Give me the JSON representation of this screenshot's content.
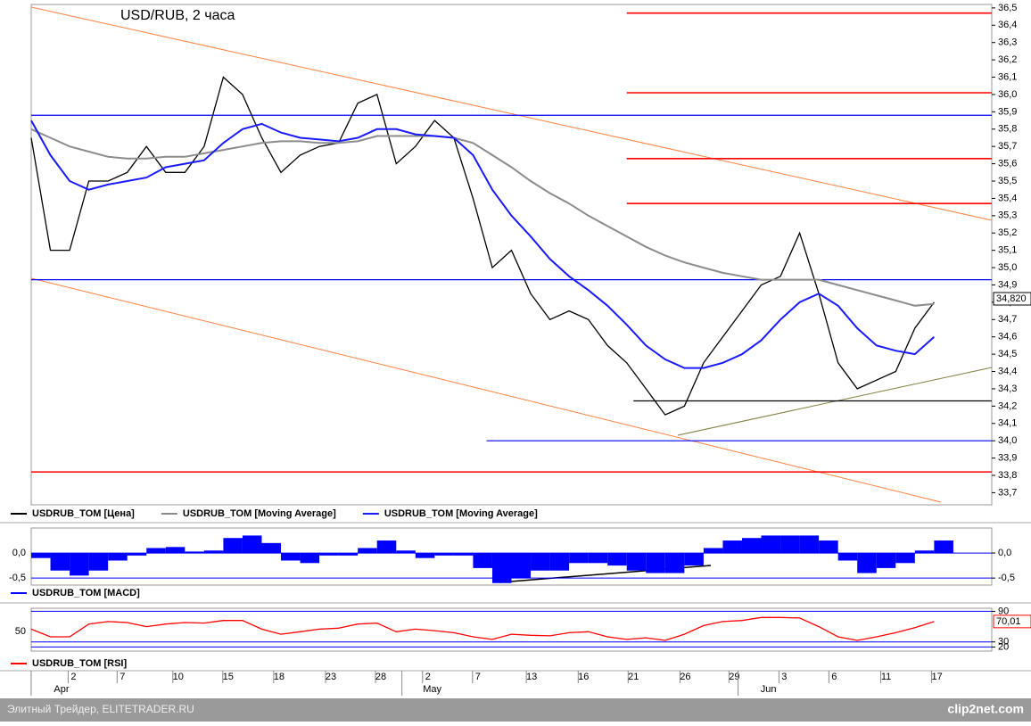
{
  "chart_data": [
    {
      "type": "line",
      "title": "USD/RUB, 2 часа",
      "xlim": [
        0,
        100
      ],
      "ylim": [
        33.63,
        36.52
      ],
      "x": [
        0,
        2,
        4,
        6,
        8,
        10,
        12,
        14,
        16,
        18,
        20,
        22,
        24,
        26,
        28,
        30,
        32,
        34,
        36,
        38,
        40,
        42,
        44,
        46,
        48,
        50,
        52,
        54,
        56,
        58,
        60,
        62,
        64,
        66,
        68,
        70,
        72,
        74,
        76,
        78,
        80,
        82,
        84,
        86,
        88,
        90,
        92,
        94
      ],
      "series": [
        {
          "name": "USDRUB_TOM [Цена]",
          "color": "#000000",
          "values": [
            35.75,
            35.1,
            35.1,
            35.5,
            35.5,
            35.55,
            35.7,
            35.55,
            35.55,
            35.7,
            36.1,
            36.0,
            35.75,
            35.55,
            35.65,
            35.7,
            35.72,
            35.95,
            36.0,
            35.6,
            35.7,
            35.85,
            35.75,
            35.4,
            35.0,
            35.1,
            34.85,
            34.7,
            34.75,
            34.7,
            34.55,
            34.45,
            34.3,
            34.15,
            34.2,
            34.45,
            34.6,
            34.75,
            34.9,
            34.95,
            35.2,
            34.85,
            34.45,
            34.3,
            34.35,
            34.4,
            34.65,
            34.8
          ]
        },
        {
          "name": "USDRUB_TOM [Moving Average]",
          "color": "#8c8c8c",
          "values": [
            35.8,
            35.75,
            35.7,
            35.67,
            35.64,
            35.63,
            35.63,
            35.64,
            35.64,
            35.66,
            35.68,
            35.7,
            35.72,
            35.73,
            35.73,
            35.72,
            35.72,
            35.73,
            35.76,
            35.76,
            35.76,
            35.76,
            35.75,
            35.72,
            35.65,
            35.58,
            35.5,
            35.43,
            35.37,
            35.3,
            35.24,
            35.18,
            35.12,
            35.07,
            35.03,
            35.0,
            34.97,
            34.95,
            34.93,
            34.93,
            34.93,
            34.93,
            34.9,
            34.87,
            34.84,
            34.81,
            34.78,
            34.79
          ]
        },
        {
          "name": "USDRUB_TOM [Moving Average]",
          "color": "#1a1aff",
          "values": [
            35.85,
            35.65,
            35.5,
            35.45,
            35.48,
            35.5,
            35.52,
            35.58,
            35.6,
            35.62,
            35.72,
            35.8,
            35.83,
            35.78,
            35.75,
            35.74,
            35.73,
            35.75,
            35.8,
            35.8,
            35.77,
            35.76,
            35.75,
            35.65,
            35.45,
            35.3,
            35.18,
            35.05,
            34.95,
            34.87,
            34.78,
            34.67,
            34.55,
            34.47,
            34.42,
            34.42,
            34.45,
            34.5,
            34.58,
            34.7,
            34.8,
            34.85,
            34.78,
            34.65,
            34.55,
            34.52,
            34.5,
            34.6
          ]
        }
      ],
      "levels": [
        {
          "value": 36.47,
          "color": "#ff0000",
          "from": 62
        },
        {
          "value": 36.01,
          "color": "#ff0000",
          "from": 62
        },
        {
          "value": 35.63,
          "color": "#ff0000",
          "from": 62
        },
        {
          "value": 35.37,
          "color": "#ff0000",
          "from": 62
        },
        {
          "value": 33.82,
          "color": "#ff0000",
          "from": 0
        },
        {
          "value": 35.88,
          "color": "#0000ff",
          "from": 0
        },
        {
          "value": 34.93,
          "color": "#0000ff",
          "from": 0
        },
        {
          "value": 34.0,
          "color": "#0000ff",
          "from": 47.4
        },
        {
          "value": 34.23,
          "color": "#000000",
          "from": 62.7
        }
      ],
      "last_value": {
        "value": 34.82,
        "label": "34,820"
      },
      "ytick_sides": "right",
      "grid": false,
      "yticks": [
        {
          "value": 33.7,
          "label": "33,7"
        },
        {
          "value": 33.8,
          "label": "33,8"
        },
        {
          "value": 33.9,
          "label": "33,9"
        },
        {
          "value": 34.0,
          "label": "34,0"
        },
        {
          "value": 34.1,
          "label": "34,1"
        },
        {
          "value": 34.2,
          "label": "34,2"
        },
        {
          "value": 34.3,
          "label": "34,3"
        },
        {
          "value": 34.4,
          "label": "34,4"
        },
        {
          "value": 34.5,
          "label": "34,5"
        },
        {
          "value": 34.6,
          "label": "34,6"
        },
        {
          "value": 34.7,
          "label": "34,7"
        },
        {
          "value": 34.8,
          "label": "34,8"
        },
        {
          "value": 34.9,
          "label": "34,9"
        },
        {
          "value": 35.0,
          "label": "35,0"
        },
        {
          "value": 35.1,
          "label": "35,1"
        },
        {
          "value": 35.2,
          "label": "35,2"
        },
        {
          "value": 35.3,
          "label": "35,3"
        },
        {
          "value": 35.4,
          "label": "35,4"
        },
        {
          "value": 35.5,
          "label": "35,5"
        },
        {
          "value": 35.6,
          "label": "35,6"
        },
        {
          "value": 35.7,
          "label": "35,7"
        },
        {
          "value": 35.8,
          "label": "35,8"
        },
        {
          "value": 35.9,
          "label": "35,9"
        },
        {
          "value": 36.0,
          "label": "36,0"
        },
        {
          "value": 36.1,
          "label": "36,1"
        },
        {
          "value": 36.2,
          "label": "36,2"
        },
        {
          "value": 36.3,
          "label": "36,3"
        },
        {
          "value": 36.4,
          "label": "36,4"
        },
        {
          "value": 36.5,
          "label": "36,5"
        }
      ]
    },
    {
      "type": "bar",
      "xlim": [
        0,
        100
      ],
      "ylim": [
        -0.64,
        0.5
      ],
      "x": [
        0,
        2,
        4,
        6,
        8,
        10,
        12,
        14,
        16,
        18,
        20,
        22,
        24,
        26,
        28,
        30,
        32,
        34,
        36,
        38,
        40,
        42,
        44,
        46,
        48,
        50,
        52,
        54,
        56,
        58,
        60,
        62,
        64,
        66,
        68,
        70,
        72,
        74,
        76,
        78,
        80,
        82,
        84,
        86,
        88,
        90,
        92,
        94
      ],
      "series": [
        {
          "name": "USDRUB_TOM [MACD]",
          "color": "#0000ff",
          "values": [
            -0.1,
            -0.35,
            -0.45,
            -0.35,
            -0.15,
            -0.05,
            0.1,
            0.12,
            0.03,
            0.05,
            0.3,
            0.35,
            0.2,
            -0.15,
            -0.2,
            -0.05,
            -0.05,
            0.1,
            0.25,
            0.05,
            -0.1,
            -0.05,
            -0.05,
            -0.3,
            -0.6,
            -0.5,
            -0.35,
            -0.35,
            -0.2,
            -0.2,
            -0.25,
            -0.35,
            -0.4,
            -0.4,
            -0.25,
            0.1,
            0.25,
            0.3,
            0.35,
            0.35,
            0.35,
            0.25,
            -0.15,
            -0.4,
            -0.3,
            -0.2,
            0.05,
            0.25
          ]
        }
      ],
      "ytick_sides": "both",
      "grid": true,
      "grid_color": "#0000ff",
      "yticks": [
        {
          "value": 0,
          "label": "0,0"
        },
        {
          "value": -0.5,
          "label": "-0,5"
        }
      ]
    },
    {
      "type": "line",
      "xlim": [
        0,
        100
      ],
      "ylim": [
        12,
        96
      ],
      "x": [
        0,
        2,
        4,
        6,
        8,
        10,
        12,
        14,
        16,
        18,
        20,
        22,
        24,
        26,
        28,
        30,
        32,
        34,
        36,
        38,
        40,
        42,
        44,
        46,
        48,
        50,
        52,
        54,
        56,
        58,
        60,
        62,
        64,
        66,
        68,
        70,
        72,
        74,
        76,
        78,
        80,
        82,
        84,
        86,
        88,
        90,
        92,
        94
      ],
      "series": [
        {
          "name": "USDRUB_TOM [RSI]",
          "color": "#ff0000",
          "values": [
            55,
            40,
            40,
            65,
            70,
            68,
            60,
            65,
            68,
            67,
            72,
            72,
            55,
            45,
            50,
            55,
            57,
            65,
            67,
            50,
            55,
            52,
            48,
            40,
            35,
            45,
            43,
            42,
            48,
            50,
            40,
            35,
            38,
            33,
            45,
            62,
            70,
            72,
            78,
            78,
            77,
            60,
            40,
            33,
            40,
            48,
            58,
            70
          ]
        }
      ],
      "last_value": {
        "value": 70.01,
        "label": "70,01"
      },
      "ytick_sides": "right",
      "grid": true,
      "grid_color": "#0000ff",
      "yticks": [
        90,
        30,
        20
      ],
      "left_yticks": [
        50
      ],
      "xticks": [
        {
          "value": 4.4,
          "label": "2"
        },
        {
          "value": 9.5,
          "label": "7"
        },
        {
          "value": 15.3,
          "label": "10"
        },
        {
          "value": 20.5,
          "label": "15"
        },
        {
          "value": 25.8,
          "label": "18"
        },
        {
          "value": 31.2,
          "label": "23"
        },
        {
          "value": 36.4,
          "label": "28"
        },
        {
          "value": 41.3,
          "label": "2"
        },
        {
          "value": 46.5,
          "label": "7"
        },
        {
          "value": 52.1,
          "label": "13"
        },
        {
          "value": 57.5,
          "label": "16"
        },
        {
          "value": 62.7,
          "label": "21"
        },
        {
          "value": 68.1,
          "label": "26"
        },
        {
          "value": 73.2,
          "label": "29"
        },
        {
          "value": 78.4,
          "label": "3"
        },
        {
          "value": 83.6,
          "label": "6"
        },
        {
          "value": 89.0,
          "label": "11"
        },
        {
          "value": 94.3,
          "label": "17"
        }
      ],
      "month_ticks": [
        {
          "value": 2.5,
          "label": "Apr"
        },
        {
          "value": 41.1,
          "label": "May"
        },
        {
          "value": 76.1,
          "label": "Jun"
        }
      ]
    }
  ],
  "footer": {
    "left": "Элитный Трейдер, ELITETRADER.RU",
    "right": "clip2net.com"
  }
}
